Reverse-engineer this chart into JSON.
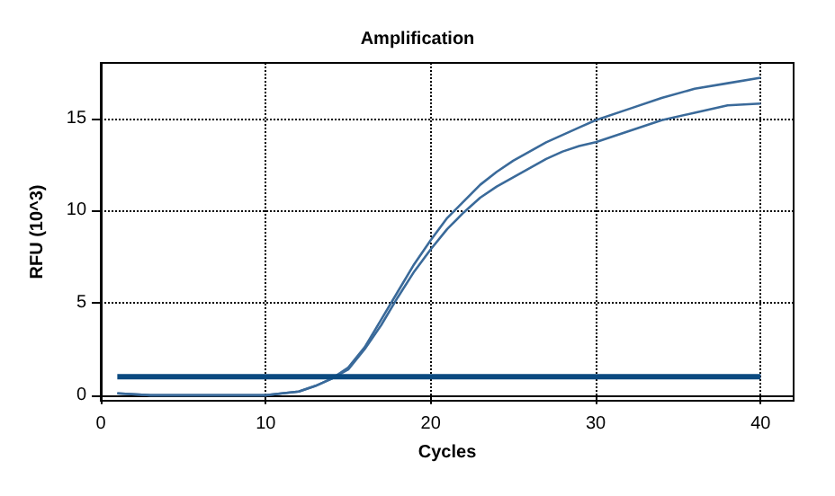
{
  "chart_data": {
    "type": "line",
    "title": "Amplification",
    "xlabel": "Cycles",
    "ylabel": "RFU (10^3)",
    "x": [
      1,
      3,
      5,
      7,
      9,
      10,
      11,
      12,
      13,
      14,
      15,
      16,
      17,
      18,
      19,
      20,
      21,
      22,
      23,
      24,
      25,
      26,
      27,
      28,
      29,
      30,
      32,
      34,
      36,
      38,
      40
    ],
    "series": [
      {
        "color": "#3a6a9a",
        "values": [
          0.1,
          0.0,
          0.0,
          0.0,
          0.0,
          0.0,
          0.1,
          0.2,
          0.5,
          0.9,
          1.5,
          2.6,
          4.1,
          5.6,
          7.1,
          8.4,
          9.6,
          10.5,
          11.4,
          12.1,
          12.7,
          13.2,
          13.7,
          14.1,
          14.5,
          14.9,
          15.5,
          16.1,
          16.6,
          16.9,
          17.2
        ]
      },
      {
        "color": "#3a6a9a",
        "values": [
          0.1,
          0.0,
          0.0,
          0.0,
          0.0,
          0.0,
          0.1,
          0.2,
          0.5,
          0.9,
          1.4,
          2.5,
          3.8,
          5.3,
          6.7,
          7.9,
          9.0,
          9.9,
          10.7,
          11.3,
          11.8,
          12.3,
          12.8,
          13.2,
          13.5,
          13.7,
          14.3,
          14.9,
          15.3,
          15.7,
          15.8
        ]
      }
    ],
    "ref_lines": [
      {
        "axis": "y",
        "value": 1,
        "color": "#0b4a80"
      }
    ],
    "xlim": [
      0,
      42
    ],
    "xticks": [
      0,
      10,
      20,
      30,
      40
    ],
    "ylim": [
      -0.3,
      18
    ],
    "yticks": [
      0,
      5,
      10,
      15
    ],
    "grid": true,
    "marker": "none",
    "line_style": "solid"
  }
}
